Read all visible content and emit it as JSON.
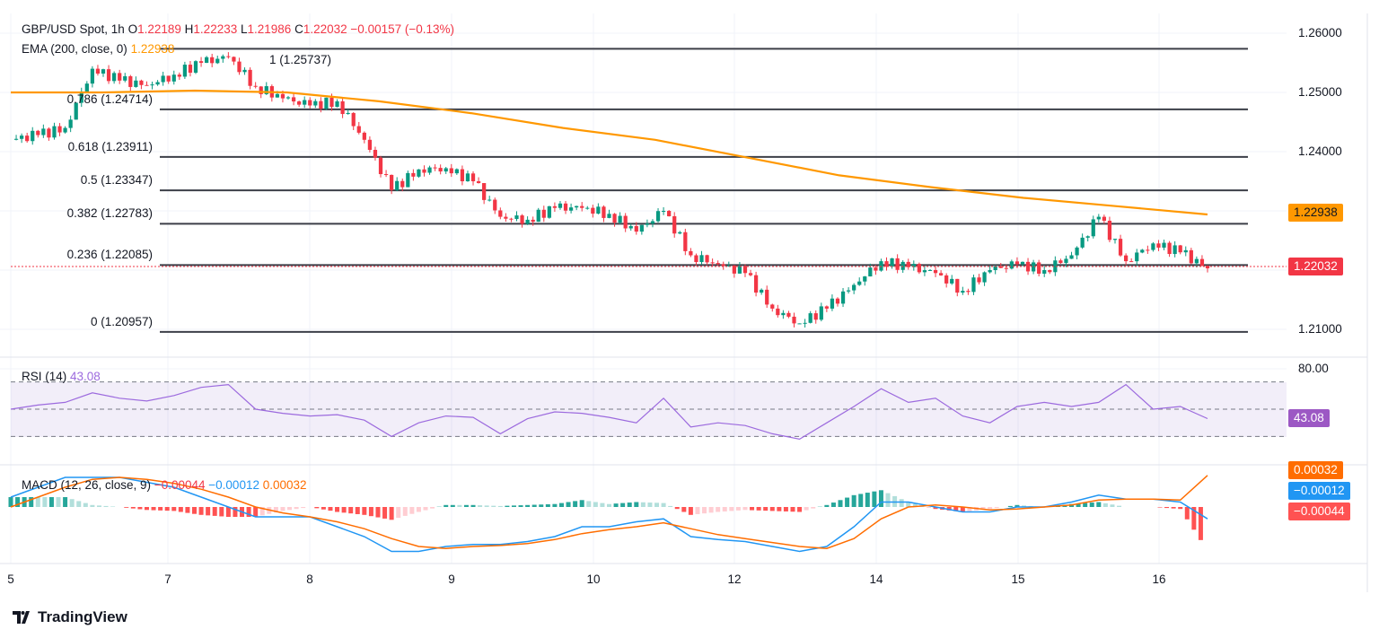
{
  "header": {
    "symbol": "GBP/USD Spot, 1h",
    "o_label": "O",
    "o": "1.22189",
    "h_label": "H",
    "h": "1.22233",
    "l_label": "L",
    "l": "1.21986",
    "c_label": "C",
    "c": "1.22032",
    "change": "−0.00157 (−0.13%)"
  },
  "ema_legend": {
    "label": "EMA (200, close, 0)",
    "value": "1.22938"
  },
  "rsi_legend": {
    "label": "RSI (14)",
    "value": "43.08"
  },
  "macd_legend": {
    "label": "MACD (12, 26, close, 9)",
    "hist": "−0.00044",
    "macd": "−0.00012",
    "signal": "0.00032"
  },
  "colors": {
    "up": "#089981",
    "down": "#F23645",
    "ema": "#FF9800",
    "rsi": "#9C6ADE",
    "macd": "#2196F3",
    "signal": "#FF6D00"
  },
  "price_axis": {
    "ticks": [
      "1.26000",
      "1.25000",
      "1.24000",
      "1.21000"
    ],
    "ema_tag": "1.22938",
    "last_tag": "1.22032"
  },
  "rsi_axis": {
    "ticks": [
      "80.00"
    ],
    "tag": "43.08"
  },
  "macd_axis": {
    "signal_tag": "0.00032",
    "macd_tag": "−0.00012",
    "hist_tag": "−0.00044"
  },
  "x_axis": {
    "ticks": [
      "5",
      "7",
      "8",
      "9",
      "10",
      "12",
      "14",
      "15",
      "16"
    ]
  },
  "fib_levels": [
    {
      "label": "1 (1.25737)",
      "price": 1.25737
    },
    {
      "label": "0.786 (1.24714)",
      "price": 1.24714
    },
    {
      "label": "0.618 (1.23911)",
      "price": 1.23911
    },
    {
      "label": "0.5 (1.23347)",
      "price": 1.23347
    },
    {
      "label": "0.382 (1.22783)",
      "price": 1.22783
    },
    {
      "label": "0.236 (1.22085)",
      "price": 1.22085
    },
    {
      "label": "0 (1.20957)",
      "price": 1.20957
    }
  ],
  "chart_data": {
    "type": "candlestick",
    "closes": [
      1.242,
      1.2428,
      1.244,
      1.254,
      1.252,
      1.2512,
      1.253,
      1.255,
      1.256,
      1.251,
      1.249,
      1.2478,
      1.2485,
      1.242,
      1.2335,
      1.237,
      1.2372,
      1.235,
      1.229,
      1.2285,
      1.2305,
      1.2305,
      1.2295,
      1.2265,
      1.23,
      1.2225,
      1.221,
      1.2195,
      1.2135,
      1.211,
      1.2135,
      1.2175,
      1.2215,
      1.2205,
      1.2195,
      1.2165,
      1.22,
      1.221,
      1.22,
      1.2225,
      1.229,
      1.2215,
      1.2245,
      1.223,
      1.2203
    ],
    "ema200": [
      1.25,
      1.25,
      1.2503,
      1.25,
      1.2485,
      1.2465,
      1.244,
      1.242,
      1.239,
      1.236,
      1.234,
      1.2322,
      1.2308,
      1.2294
    ],
    "rsi": [
      50,
      53,
      55,
      62,
      58,
      56,
      60,
      66,
      68,
      50,
      47,
      45,
      46,
      42,
      30,
      40,
      45,
      44,
      32,
      43,
      48,
      47,
      44,
      40,
      58,
      37,
      40,
      38,
      32,
      28,
      40,
      52,
      65,
      55,
      58,
      45,
      40,
      52,
      55,
      52,
      55,
      68,
      50,
      52,
      43.08
    ],
    "macd": [
      0.0001,
      0.0002,
      0.0003,
      0.0003,
      0.0003,
      0.00025,
      0.0002,
      0.0001,
      0.0,
      -0.0001,
      -0.0001,
      -0.0001,
      -0.0002,
      -0.0003,
      -0.00045,
      -0.00045,
      -0.0004,
      -0.00038,
      -0.00038,
      -0.00035,
      -0.0003,
      -0.0002,
      -0.0002,
      -0.00015,
      -0.00012,
      -0.0003,
      -0.00033,
      -0.00035,
      -0.0004,
      -0.00045,
      -0.0004,
      -0.0002,
      5e-05,
      5e-05,
      0.0,
      -5e-05,
      -5e-05,
      0.0,
      0.0,
      5e-05,
      0.00012,
      8e-05,
      8e-05,
      5e-05,
      -0.00012
    ],
    "signal": [
      0.0,
      0.0001,
      0.0002,
      0.00028,
      0.0003,
      0.00028,
      0.00024,
      0.00018,
      0.0001,
      0.0,
      -6e-05,
      -0.0001,
      -0.00015,
      -0.00022,
      -0.00032,
      -0.0004,
      -0.00042,
      -0.0004,
      -0.00039,
      -0.00037,
      -0.00033,
      -0.00027,
      -0.00023,
      -0.0002,
      -0.00016,
      -0.00022,
      -0.00028,
      -0.00032,
      -0.00036,
      -0.0004,
      -0.00042,
      -0.00032,
      -0.00012,
      0.0,
      2e-05,
      0.0,
      -3e-05,
      -2e-05,
      0.0,
      2e-05,
      7e-05,
      8e-05,
      8e-05,
      7e-05,
      0.00032
    ],
    "ylim_price": [
      1.2058,
      1.2628
    ],
    "rsi_levels": [
      70,
      50,
      30
    ],
    "x_tick_labels": [
      "5",
      "7",
      "8",
      "9",
      "10",
      "12",
      "14",
      "15",
      "16"
    ]
  },
  "brand": {
    "name": "TradingView"
  }
}
